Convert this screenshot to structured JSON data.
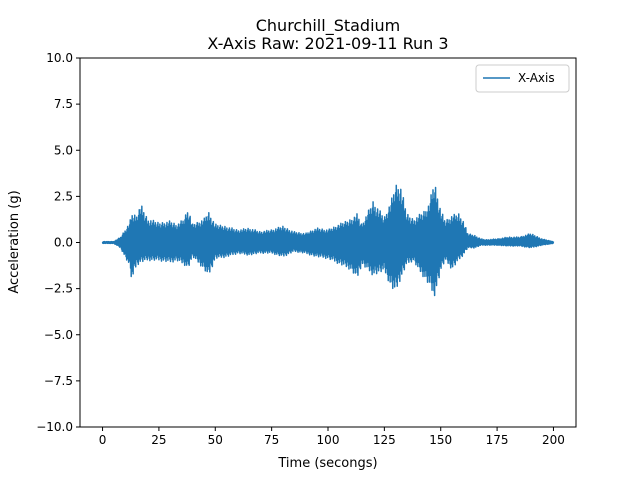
{
  "chart_data": {
    "type": "line",
    "title": "Churchill_Stadium",
    "subtitle": "X-Axis Raw: 2021-09-11 Run 3",
    "xlabel": "Time (secongs)",
    "ylabel": "Acceleration (g)",
    "xlim": [
      -10,
      210
    ],
    "ylim": [
      -10,
      10
    ],
    "xticks": [
      "0",
      "25",
      "50",
      "75",
      "100",
      "125",
      "150",
      "175",
      "200"
    ],
    "yticks": [
      "−10.0",
      "−7.5",
      "−5.0",
      "−2.5",
      "0.0",
      "2.5",
      "5.0",
      "7.5",
      "10.0"
    ],
    "grid": false,
    "legend_position": "top-right",
    "series": [
      {
        "name": "X-Axis",
        "color": "#1f77b4",
        "envelope": {
          "t": [
            0,
            5,
            8,
            12,
            13,
            15,
            17,
            20,
            25,
            30,
            33,
            36,
            38,
            40,
            45,
            47,
            50,
            55,
            60,
            65,
            70,
            75,
            80,
            85,
            90,
            95,
            100,
            105,
            110,
            113,
            115,
            120,
            125,
            128,
            130,
            132,
            135,
            138,
            140,
            143,
            145,
            147,
            148,
            150,
            152,
            155,
            158,
            160,
            162,
            165,
            168,
            170,
            175,
            180,
            185,
            190,
            195,
            200
          ],
          "upper": [
            0.05,
            0.05,
            0.3,
            1.1,
            1.6,
            1.5,
            2.1,
            1.3,
            1.1,
            1.2,
            1.0,
            1.3,
            1.9,
            1.0,
            1.3,
            1.7,
            1.0,
            0.9,
            0.7,
            0.8,
            0.6,
            0.7,
            0.9,
            0.6,
            0.5,
            0.8,
            0.7,
            1.0,
            1.3,
            1.6,
            1.0,
            2.3,
            1.4,
            2.3,
            3.2,
            3.2,
            1.6,
            1.3,
            1.5,
            1.8,
            2.2,
            3.4,
            3.0,
            1.8,
            1.2,
            1.5,
            1.6,
            1.2,
            0.5,
            0.4,
            0.2,
            0.15,
            0.2,
            0.3,
            0.3,
            0.5,
            0.2,
            0.05
          ],
          "lower": [
            -0.05,
            -0.05,
            -0.3,
            -1.3,
            -2.2,
            -1.3,
            -1.1,
            -1.0,
            -1.0,
            -1.1,
            -1.0,
            -1.2,
            -1.4,
            -0.8,
            -1.5,
            -1.9,
            -0.9,
            -0.8,
            -0.6,
            -0.7,
            -0.6,
            -0.6,
            -0.8,
            -0.5,
            -0.6,
            -0.8,
            -0.9,
            -1.2,
            -1.5,
            -2.0,
            -1.2,
            -1.8,
            -1.6,
            -2.5,
            -2.8,
            -2.1,
            -1.2,
            -1.0,
            -1.5,
            -2.0,
            -2.4,
            -3.0,
            -2.6,
            -1.6,
            -1.0,
            -1.5,
            -1.0,
            -0.7,
            -0.3,
            -0.3,
            -0.15,
            -0.15,
            -0.15,
            -0.2,
            -0.2,
            -0.3,
            -0.15,
            -0.05
          ]
        }
      }
    ]
  }
}
